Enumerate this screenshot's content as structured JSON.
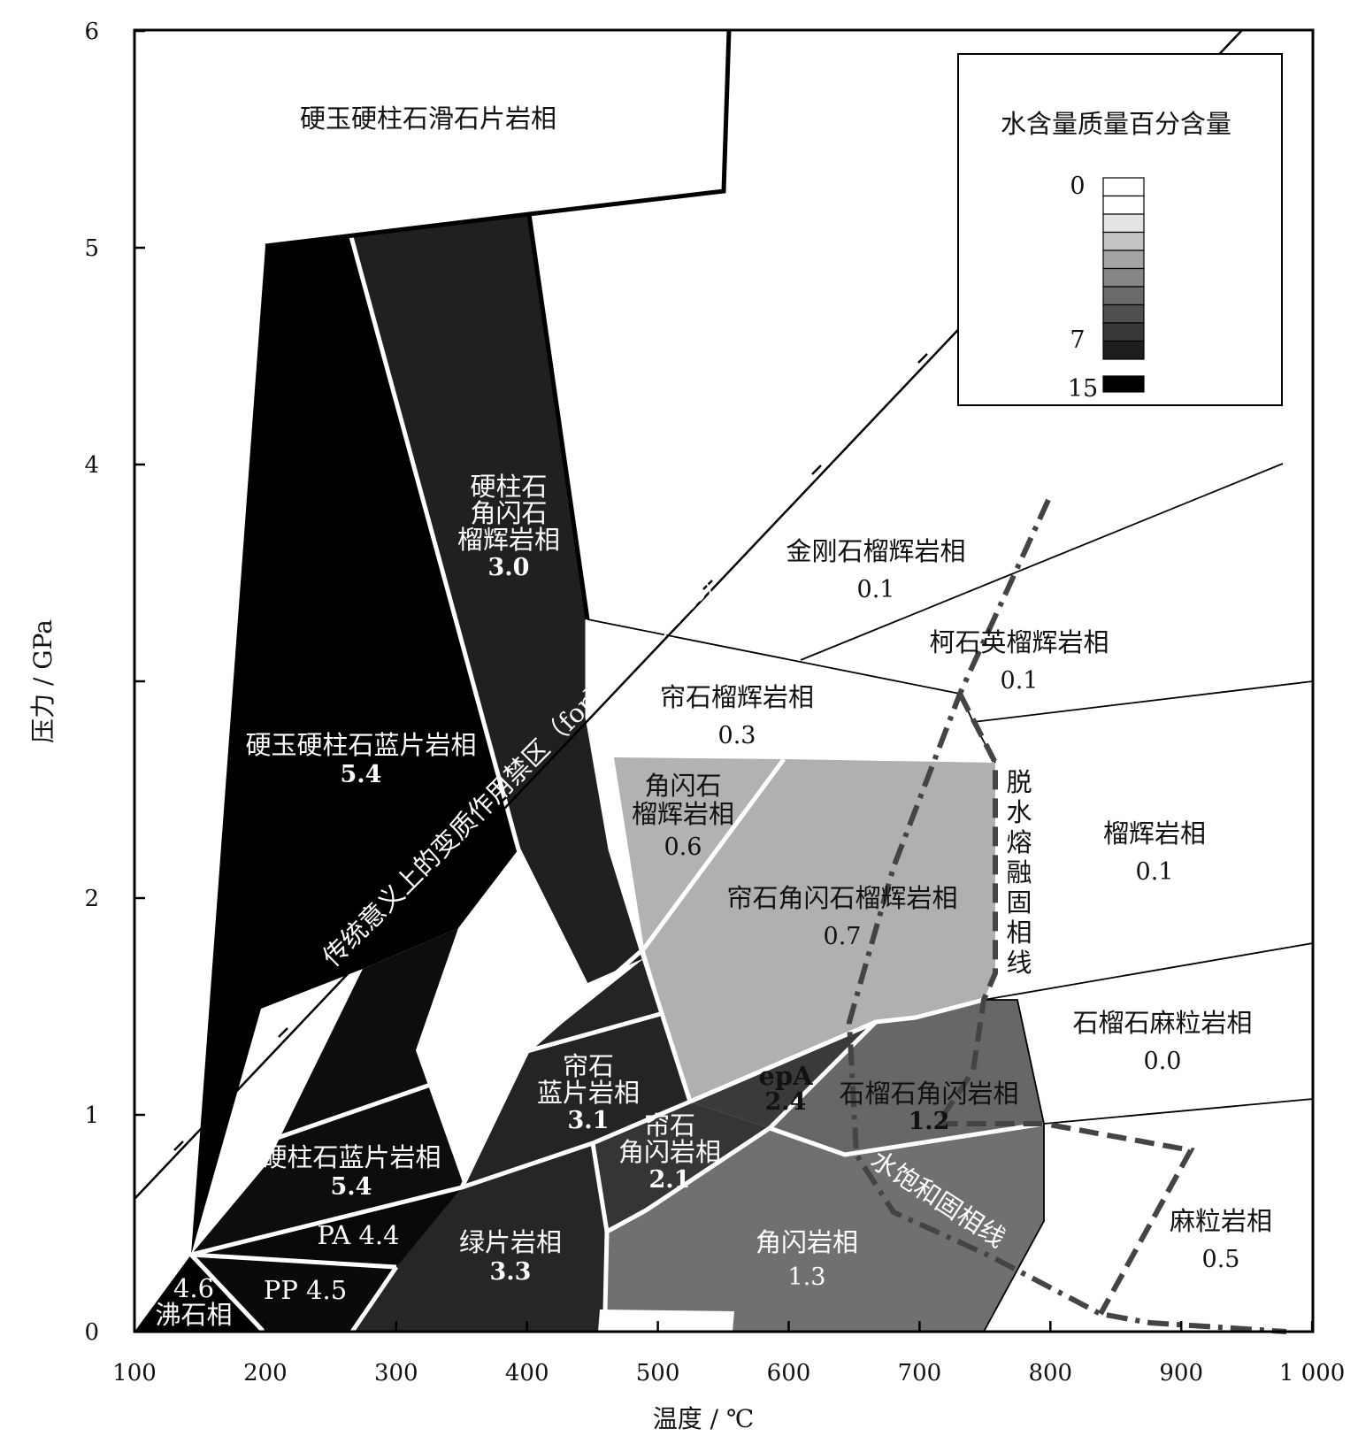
{
  "axes": {
    "xlabel": "温度 / ℃",
    "ylabel": "压力 / GPa",
    "xticks": [
      "100",
      "200",
      "300",
      "400",
      "500",
      "600",
      "700",
      "800",
      "900",
      "1 000"
    ],
    "yticks": [
      "0",
      "1",
      "2",
      "4",
      "5",
      "6"
    ]
  },
  "legend": {
    "title": "水含量质量百分含量",
    "labels": [
      "0",
      "7",
      "15"
    ],
    "swatches": [
      "#ffffff",
      "#ffffff",
      "#e3e3e3",
      "#c4c4c4",
      "#a4a4a4",
      "#868686",
      "#6a6a6a",
      "#505050",
      "#383838",
      "#1e1e1e",
      "#000000"
    ]
  },
  "facies": [
    {
      "id": "jd-law-talc",
      "name": "硬玉硬柱石滑石片岩相",
      "value": ""
    },
    {
      "id": "jd-law-blueschist",
      "name": "硬玉硬柱石蓝片岩相",
      "value": "5.4"
    },
    {
      "id": "law-amp-eclogite",
      "name": "硬柱石\n角闪石\n榴辉岩相",
      "value": "3.0"
    },
    {
      "id": "diamond-eclogite",
      "name": "金刚石榴辉岩相",
      "value": "0.1"
    },
    {
      "id": "coesite-eclogite",
      "name": "柯石英榴辉岩相",
      "value": "0.1"
    },
    {
      "id": "ep-eclogite",
      "name": "帘石榴辉岩相",
      "value": "0.3"
    },
    {
      "id": "amp-eclogite",
      "name": "角闪石\n榴辉岩相",
      "value": "0.6"
    },
    {
      "id": "ep-amp-eclogite",
      "name": "帘石角闪石榴辉岩相",
      "value": "0.7"
    },
    {
      "id": "eclogite",
      "name": "榴辉岩相",
      "value": "0.1"
    },
    {
      "id": "grt-granulite",
      "name": "石榴石麻粒岩相",
      "value": "0.0"
    },
    {
      "id": "ep-blueschist",
      "name": "帘石\n蓝片岩相",
      "value": "3.1"
    },
    {
      "id": "epA",
      "name": "epA",
      "value": "2.4"
    },
    {
      "id": "grt-amphibolite",
      "name": "石榴石角闪岩相",
      "value": "1.2"
    },
    {
      "id": "ep-amphibolite",
      "name": "帘石\n角闪岩相",
      "value": "2.1"
    },
    {
      "id": "law-blueschist",
      "name": "硬柱石蓝片岩相",
      "value": "5.4"
    },
    {
      "id": "greenschist",
      "name": "绿片岩相",
      "value": "3.3"
    },
    {
      "id": "amphibolite",
      "name": "角闪岩相",
      "value": "1.3"
    },
    {
      "id": "granulite",
      "name": "麻粒岩相",
      "value": "0.5"
    },
    {
      "id": "PA",
      "name": "PA 4.4",
      "value": ""
    },
    {
      "id": "PP",
      "name": "PP 4.5",
      "value": ""
    },
    {
      "id": "zeolite",
      "name": "4.6\n沸石相",
      "value": ""
    }
  ],
  "annotations": {
    "forbidden_zone": "传统意义上的变质作用禁区（forbidden zone）",
    "dehydration_solidus": "脱水熔融固相线",
    "water_saturated_solidus": "水饱和固相线"
  }
}
